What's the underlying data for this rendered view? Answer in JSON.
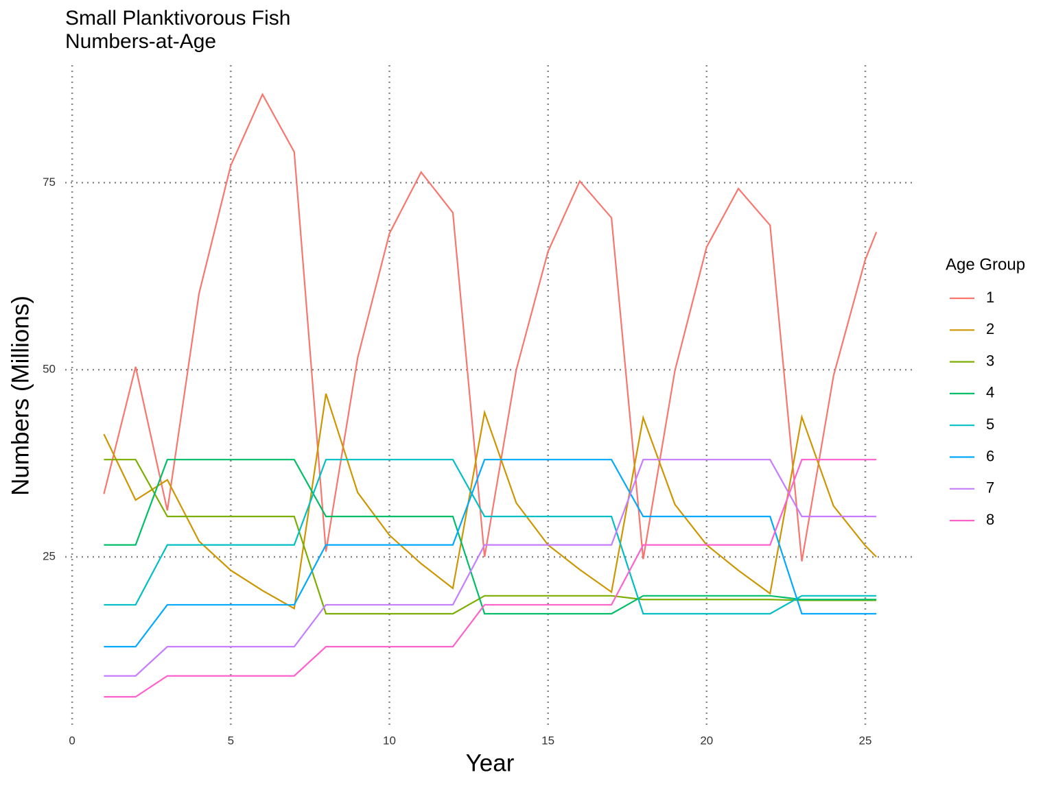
{
  "chart_data": {
    "type": "line",
    "title": "Small Planktivorous Fish",
    "subtitle": "Numbers-at-Age",
    "x_label": "Year",
    "y_label": "Numbers (Millions)",
    "legend_title": "Age Group",
    "legend_position": "right",
    "grid": true,
    "x": [
      1,
      2,
      3,
      4,
      5,
      6,
      7,
      8,
      9,
      10,
      11,
      12,
      13,
      14,
      15,
      16,
      17,
      18,
      19,
      20,
      21,
      22,
      23,
      24,
      25,
      25.35
    ],
    "xlim": [
      -0.22,
      26.58
    ],
    "xticks": [
      0,
      5,
      10,
      15,
      20,
      25
    ],
    "ylim": [
      2.1,
      90.7
    ],
    "yticks": [
      25,
      50,
      75
    ],
    "series": [
      {
        "name": "1",
        "color": "#F8766D",
        "values": [
          33.4,
          50.4,
          31.2,
          60.2,
          77.3,
          86.8,
          79.1,
          25.7,
          51.6,
          68.2,
          76.4,
          71.0,
          25.0,
          50.0,
          65.8,
          75.2,
          70.3,
          24.7,
          49.9,
          66.4,
          74.2,
          69.3,
          24.4,
          49.2,
          64.7,
          68.4
        ]
      },
      {
        "name": "2",
        "color": "#CD9600",
        "values": [
          41.4,
          32.6,
          35.3,
          27.1,
          23.2,
          20.5,
          18.1,
          46.8,
          33.6,
          27.9,
          24.1,
          20.8,
          44.3,
          32.2,
          26.6,
          23.3,
          20.3,
          43.6,
          32.0,
          26.6,
          23.2,
          20.1,
          43.7,
          31.8,
          26.5,
          25.0
        ]
      },
      {
        "name": "3",
        "color": "#7CAE00",
        "values": [
          38.0,
          38.0,
          30.4,
          30.4,
          30.4,
          30.4,
          30.4,
          17.4,
          17.4,
          17.4,
          17.4,
          17.4,
          19.8,
          19.8,
          19.8,
          19.8,
          19.8,
          19.3,
          19.3,
          19.3,
          19.3,
          19.3,
          19.2,
          19.2,
          19.2,
          19.2
        ]
      },
      {
        "name": "4",
        "color": "#00BE67",
        "values": [
          26.6,
          26.6,
          38.0,
          38.0,
          38.0,
          38.0,
          38.0,
          30.4,
          30.4,
          30.4,
          30.4,
          30.4,
          17.4,
          17.4,
          17.4,
          17.4,
          17.4,
          19.8,
          19.8,
          19.8,
          19.8,
          19.8,
          19.3,
          19.3,
          19.3,
          19.3
        ]
      },
      {
        "name": "5",
        "color": "#00BFC4",
        "values": [
          18.6,
          18.6,
          26.6,
          26.6,
          26.6,
          26.6,
          26.6,
          38.0,
          38.0,
          38.0,
          38.0,
          38.0,
          30.4,
          30.4,
          30.4,
          30.4,
          30.4,
          17.4,
          17.4,
          17.4,
          17.4,
          17.4,
          19.8,
          19.8,
          19.8,
          19.8
        ]
      },
      {
        "name": "6",
        "color": "#00A9FF",
        "values": [
          13.0,
          13.0,
          18.6,
          18.6,
          18.6,
          18.6,
          18.6,
          26.6,
          26.6,
          26.6,
          26.6,
          26.6,
          38.0,
          38.0,
          38.0,
          38.0,
          38.0,
          30.4,
          30.4,
          30.4,
          30.4,
          30.4,
          17.4,
          17.4,
          17.4,
          17.4
        ]
      },
      {
        "name": "7",
        "color": "#C77CFF",
        "values": [
          9.1,
          9.1,
          13.0,
          13.0,
          13.0,
          13.0,
          13.0,
          18.6,
          18.6,
          18.6,
          18.6,
          18.6,
          26.6,
          26.6,
          26.6,
          26.6,
          26.6,
          38.0,
          38.0,
          38.0,
          38.0,
          38.0,
          30.4,
          30.4,
          30.4,
          30.4
        ]
      },
      {
        "name": "8",
        "color": "#FF61CC",
        "values": [
          6.3,
          6.3,
          9.1,
          9.1,
          9.1,
          9.1,
          9.1,
          13.0,
          13.0,
          13.0,
          13.0,
          13.0,
          18.6,
          18.6,
          18.6,
          18.6,
          18.6,
          26.6,
          26.6,
          26.6,
          26.6,
          26.6,
          38.0,
          38.0,
          38.0,
          38.0
        ]
      }
    ]
  }
}
